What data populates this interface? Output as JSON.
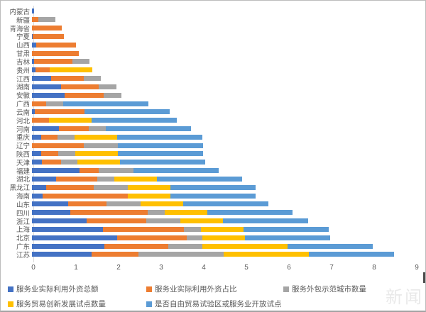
{
  "window": {
    "type": "chart-screenshot"
  },
  "watermark": {
    "text": "新闻"
  },
  "axis": {
    "x_ticks": [
      "0",
      "1",
      "2",
      "3",
      "4",
      "5",
      "6",
      "7",
      "8",
      "9"
    ],
    "xlim": [
      0,
      9
    ]
  },
  "legend": {
    "row1": [
      "服务业实际利用外资总额",
      "服务业实际利用外资占比",
      "服务外包示范城市数量"
    ],
    "row2": [
      "服务贸易创新发展试点数量",
      "是否自由贸易试验区或服务业开放试点"
    ]
  },
  "colors": {
    "blue": "#4472C4",
    "orange": "#ED7D31",
    "gray": "#A5A5A5",
    "yellow": "#FFC000",
    "lightblue": "#5B9BD5",
    "text": "#595959",
    "axis_line": "#D9D9D9"
  },
  "chart_data": {
    "type": "bar",
    "orientation": "horizontal",
    "stacked": true,
    "grid": false,
    "legend_position": "bottom",
    "xlim": [
      0,
      9
    ],
    "x_ticks": [
      0,
      1,
      2,
      3,
      4,
      5,
      6,
      7,
      8,
      9
    ],
    "categories": [
      "内蒙古",
      "新疆",
      "青海省",
      "宁夏",
      "山西",
      "甘肃",
      "吉林",
      "贵州",
      "江西",
      "湖南",
      "安徽",
      "广西",
      "云南",
      "河北",
      "河南",
      "重庆",
      "辽宁",
      "陕西",
      "天津",
      "福建",
      "湖北",
      "黑龙江",
      "海南",
      "山东",
      "四川",
      "浙江",
      "上海",
      "北京",
      "广东",
      "江苏"
    ],
    "series": [
      {
        "name": "服务业实际利用外资总额",
        "color": "#4472C4",
        "values": [
          0.05,
          0,
          0,
          0.02,
          0.1,
          0,
          0.05,
          0.08,
          0.45,
          0.68,
          0.77,
          0,
          0.07,
          0,
          0.64,
          0.22,
          0,
          0.22,
          0.24,
          1.11,
          0.56,
          0.33,
          0.25,
          0.85,
          0.9,
          1.28,
          1.67,
          2.0,
          1.7,
          1.4
        ]
      },
      {
        "name": "服务业实际利用外资占比",
        "color": "#ED7D31",
        "values": [
          0,
          0.15,
          0.7,
          0.73,
          0.93,
          1.1,
          0.9,
          0.33,
          0.76,
          0.89,
          0.92,
          0.33,
          1.17,
          0.4,
          0.7,
          0.38,
          1.22,
          0.4,
          0.45,
          0.46,
          0.97,
          1.12,
          2.0,
          0.9,
          1.82,
          1.4,
          1.9,
          1.63,
          1.5,
          1.1
        ]
      },
      {
        "name": "服务外包示范城市数量",
        "color": "#A5A5A5",
        "values": [
          0,
          0.4,
          0,
          0,
          0,
          0,
          0.4,
          0,
          0.4,
          0.41,
          0.41,
          0.4,
          0,
          0,
          0.4,
          0.4,
          0.8,
          0.4,
          0.38,
          0.82,
          0.4,
          0.8,
          0,
          0.8,
          0.4,
          0.8,
          0.4,
          0.37,
          0.8,
          2.0
        ]
      },
      {
        "name": "服务贸易创新发展试点数量",
        "color": "#FFC000",
        "values": [
          0,
          0,
          0,
          0,
          0,
          0,
          0,
          1.0,
          0,
          0,
          0,
          0,
          0,
          1.0,
          0,
          1.0,
          0,
          1.0,
          1.0,
          0,
          1.0,
          1.0,
          1.0,
          1.0,
          1.0,
          1.0,
          1.0,
          1.0,
          2.0,
          2.0
        ]
      },
      {
        "name": "是否自由贸易试验区或服务业开放试点",
        "color": "#5B9BD5",
        "values": [
          0,
          0,
          0,
          0,
          0,
          0,
          0,
          0,
          0,
          0,
          0,
          2.0,
          2.0,
          2.0,
          2.0,
          2.0,
          2.0,
          2.0,
          2.0,
          2.0,
          2.0,
          2.0,
          2.0,
          2.0,
          2.0,
          2.0,
          2.0,
          2.0,
          2.0,
          2.0
        ]
      }
    ]
  }
}
